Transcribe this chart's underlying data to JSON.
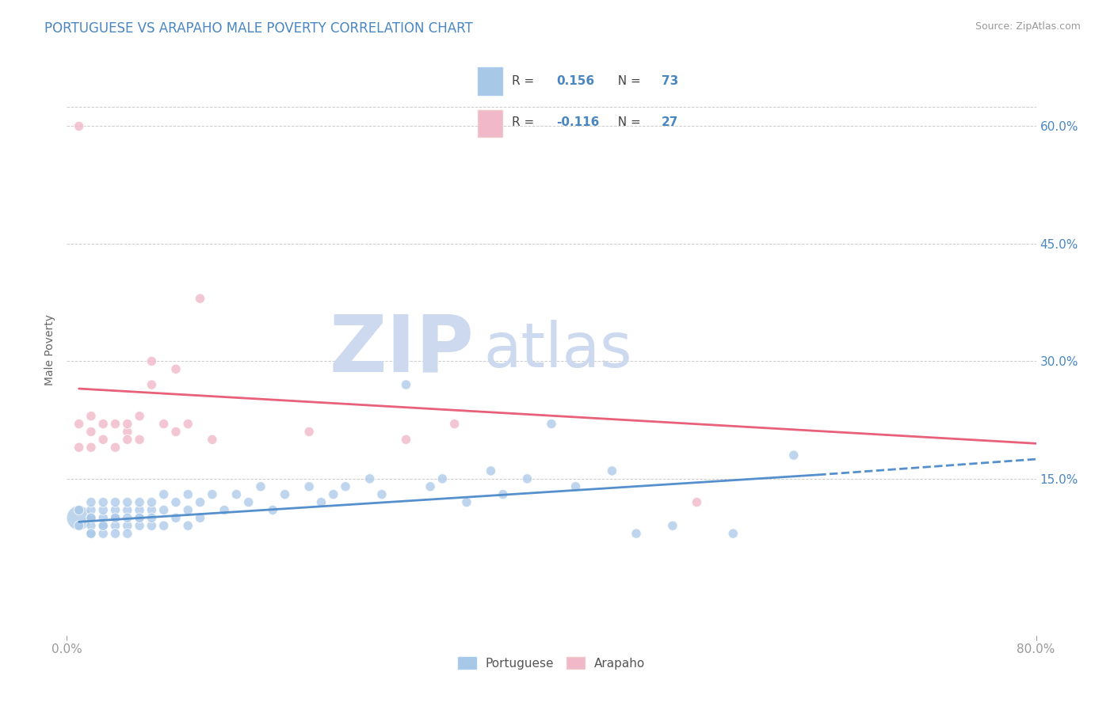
{
  "title": "PORTUGUESE VS ARAPAHO MALE POVERTY CORRELATION CHART",
  "source_text": "Source: ZipAtlas.com",
  "ylabel": "Male Poverty",
  "xlim": [
    0.0,
    0.8
  ],
  "ylim": [
    -0.05,
    0.68
  ],
  "yticks": [
    0.15,
    0.3,
    0.45,
    0.6
  ],
  "ytick_labels": [
    "15.0%",
    "30.0%",
    "45.0%",
    "60.0%"
  ],
  "xtick_left_label": "0.0%",
  "xtick_right_label": "80.0%",
  "title_color": "#4a86c0",
  "title_fontsize": 12,
  "background_color": "#ffffff",
  "watermark_zip": "ZIP",
  "watermark_atlas": "atlas",
  "watermark_color": "#cdd9ee",
  "portuguese_color": "#a8c8e8",
  "arapaho_color": "#f0b8c8",
  "portuguese_line_color": "#5590cc",
  "arapaho_line_color": "#e8607a",
  "portuguese_R": 0.156,
  "portuguese_N": 73,
  "arapaho_R": -0.116,
  "arapaho_N": 27,
  "legend_label_portuguese": "Portuguese",
  "legend_label_arapaho": "Arapaho",
  "portuguese_x": [
    0.01,
    0.01,
    0.01,
    0.02,
    0.02,
    0.02,
    0.02,
    0.02,
    0.02,
    0.02,
    0.03,
    0.03,
    0.03,
    0.03,
    0.03,
    0.03,
    0.04,
    0.04,
    0.04,
    0.04,
    0.04,
    0.04,
    0.05,
    0.05,
    0.05,
    0.05,
    0.05,
    0.06,
    0.06,
    0.06,
    0.06,
    0.06,
    0.07,
    0.07,
    0.07,
    0.07,
    0.08,
    0.08,
    0.08,
    0.09,
    0.09,
    0.1,
    0.1,
    0.1,
    0.11,
    0.11,
    0.12,
    0.13,
    0.14,
    0.15,
    0.16,
    0.17,
    0.18,
    0.2,
    0.21,
    0.22,
    0.23,
    0.25,
    0.26,
    0.28,
    0.3,
    0.31,
    0.33,
    0.35,
    0.36,
    0.38,
    0.4,
    0.42,
    0.45,
    0.47,
    0.5,
    0.55,
    0.6
  ],
  "portuguese_y": [
    0.1,
    0.09,
    0.11,
    0.08,
    0.1,
    0.11,
    0.09,
    0.12,
    0.1,
    0.08,
    0.09,
    0.1,
    0.11,
    0.08,
    0.12,
    0.09,
    0.1,
    0.11,
    0.09,
    0.12,
    0.08,
    0.1,
    0.09,
    0.11,
    0.1,
    0.12,
    0.08,
    0.1,
    0.09,
    0.11,
    0.12,
    0.1,
    0.09,
    0.11,
    0.12,
    0.1,
    0.11,
    0.13,
    0.09,
    0.12,
    0.1,
    0.11,
    0.13,
    0.09,
    0.12,
    0.1,
    0.13,
    0.11,
    0.13,
    0.12,
    0.14,
    0.11,
    0.13,
    0.14,
    0.12,
    0.13,
    0.14,
    0.15,
    0.13,
    0.27,
    0.14,
    0.15,
    0.12,
    0.16,
    0.13,
    0.15,
    0.22,
    0.14,
    0.16,
    0.08,
    0.09,
    0.08,
    0.18
  ],
  "portuguese_sizes": [
    500,
    80,
    80,
    80,
    80,
    80,
    80,
    80,
    80,
    80,
    80,
    80,
    80,
    80,
    80,
    80,
    80,
    80,
    80,
    80,
    80,
    80,
    80,
    80,
    80,
    80,
    80,
    80,
    80,
    80,
    80,
    80,
    80,
    80,
    80,
    80,
    80,
    80,
    80,
    80,
    80,
    80,
    80,
    80,
    80,
    80,
    80,
    80,
    80,
    80,
    80,
    80,
    80,
    80,
    80,
    80,
    80,
    80,
    80,
    80,
    80,
    80,
    80,
    80,
    80,
    80,
    80,
    80,
    80,
    80,
    80,
    80,
    80
  ],
  "arapaho_x": [
    0.01,
    0.01,
    0.01,
    0.02,
    0.02,
    0.02,
    0.03,
    0.03,
    0.04,
    0.04,
    0.05,
    0.05,
    0.05,
    0.06,
    0.06,
    0.07,
    0.07,
    0.08,
    0.09,
    0.09,
    0.1,
    0.11,
    0.12,
    0.2,
    0.28,
    0.32,
    0.52
  ],
  "arapaho_y": [
    0.6,
    0.22,
    0.19,
    0.21,
    0.23,
    0.19,
    0.22,
    0.2,
    0.22,
    0.19,
    0.21,
    0.2,
    0.22,
    0.2,
    0.23,
    0.3,
    0.27,
    0.22,
    0.21,
    0.29,
    0.22,
    0.38,
    0.2,
    0.21,
    0.2,
    0.22,
    0.12
  ],
  "arapaho_sizes": [
    80,
    80,
    80,
    80,
    80,
    80,
    80,
    80,
    80,
    80,
    80,
    80,
    80,
    80,
    80,
    80,
    80,
    80,
    80,
    80,
    80,
    80,
    80,
    80,
    80,
    80,
    80
  ],
  "grid_color": "#cccccc",
  "tick_color": "#999999",
  "tick_fontsize": 11,
  "ytick_color": "#4a86c0",
  "source_color": "#999999",
  "portuguese_trend_x_start": 0.01,
  "portuguese_trend_x_solid_end": 0.62,
  "portuguese_trend_x_dash_end": 0.8,
  "portuguese_trend_y_start": 0.095,
  "portuguese_trend_y_solid_end": 0.155,
  "portuguese_trend_y_dash_end": 0.175,
  "arapaho_trend_x_start": 0.01,
  "arapaho_trend_x_end": 0.8,
  "arapaho_trend_y_start": 0.265,
  "arapaho_trend_y_end": 0.195
}
